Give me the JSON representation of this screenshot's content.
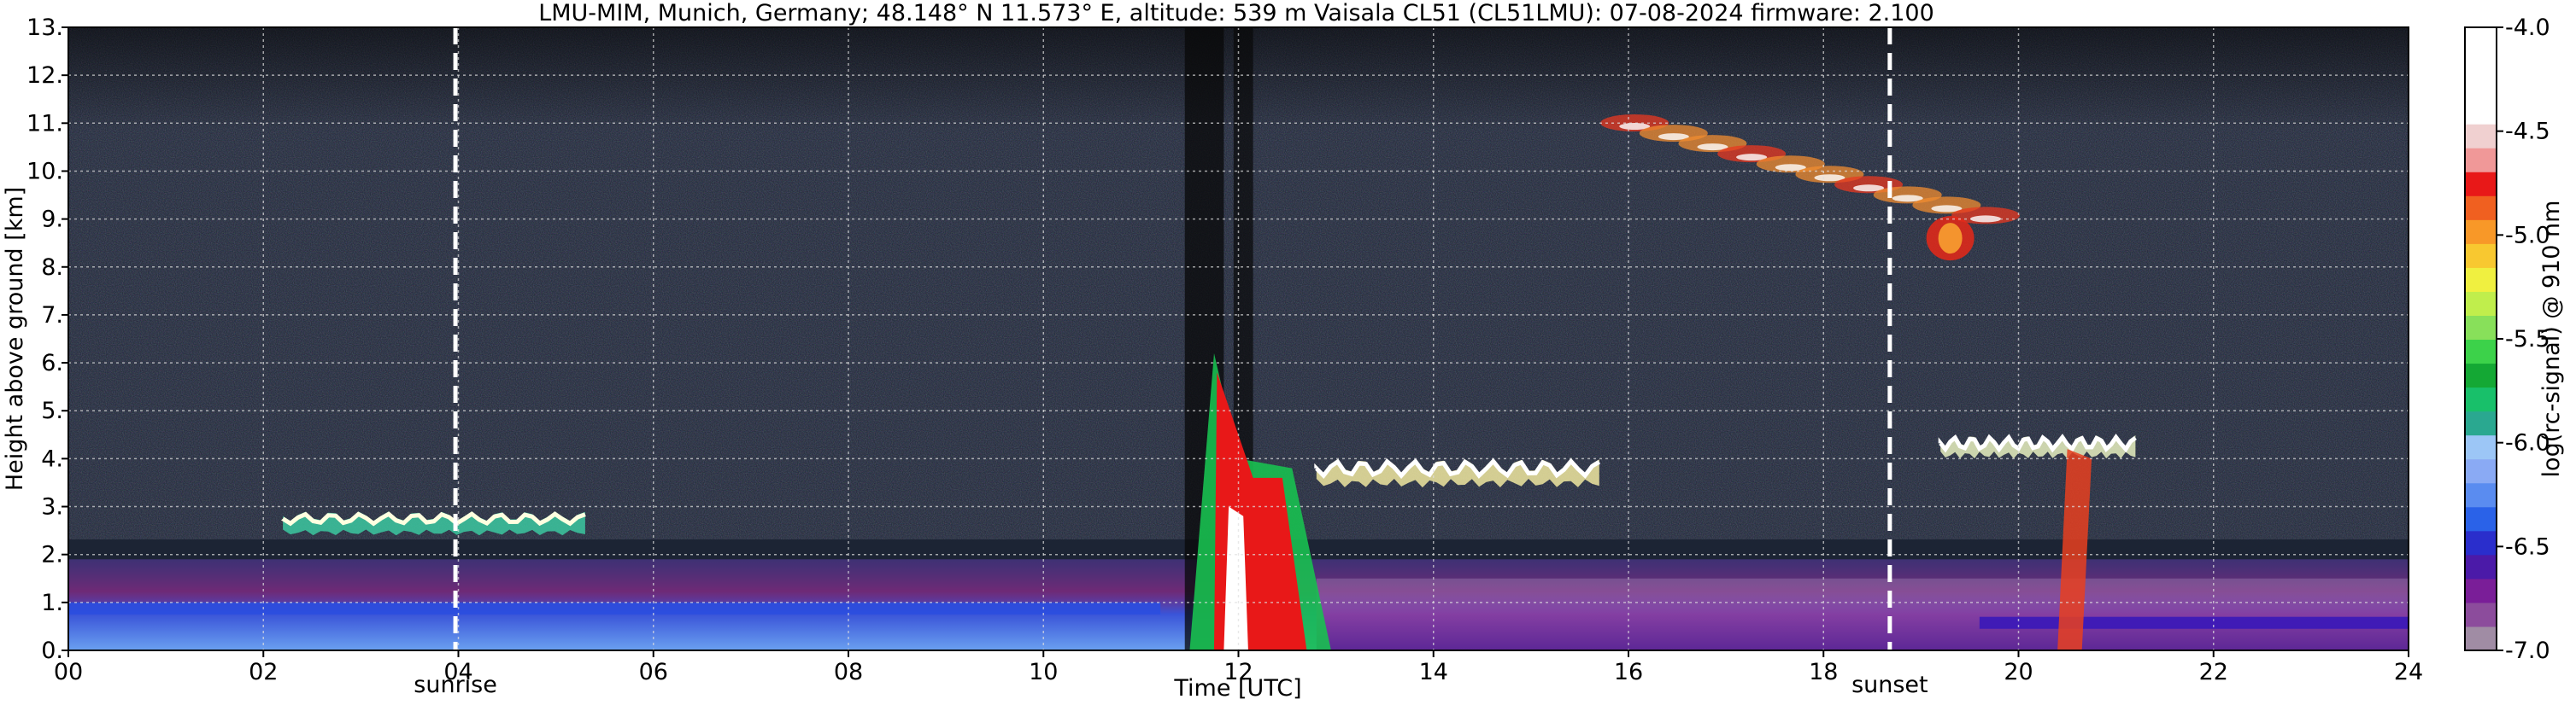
{
  "chart_data": {
    "type": "heatmap",
    "title": "LMU-MIM, Munich, Germany; 48.148° N 11.573° E, altitude: 539 m    Vaisala CL51 (CL51LMU): 07-08-2024    firmware: 2.100",
    "xlabel": "Time [UTC]",
    "ylabel": "Height above ground [km]",
    "xlim": [
      0,
      24
    ],
    "ylim": [
      0,
      13
    ],
    "x_ticks": [
      "00",
      "02",
      "04",
      "06",
      "08",
      "10",
      "12",
      "14",
      "16",
      "18",
      "20",
      "22",
      "24"
    ],
    "y_ticks": [
      "0.",
      "1.",
      "2.",
      "3.",
      "4.",
      "5.",
      "6.",
      "7.",
      "8.",
      "9.",
      "10.",
      "11.",
      "12.",
      "13."
    ],
    "grid": true,
    "colorbar": {
      "label": "log(rc-signal) @ 910 nm",
      "range": [
        -7.0,
        -4.0
      ],
      "ticks": [
        "-4.0",
        "-4.5",
        "-5.0",
        "-5.5",
        "-6.0",
        "-6.5",
        "-7.0"
      ],
      "colors": [
        "#a08ca4",
        "#8c4c9c",
        "#7a1e98",
        "#4b1aa8",
        "#2a2ecc",
        "#2a62e8",
        "#5a8cf0",
        "#8aaaf4",
        "#9cc6f6",
        "#2aa890",
        "#18c06a",
        "#14a834",
        "#3cd24a",
        "#88e05a",
        "#c0ee4c",
        "#f0f040",
        "#f8c830",
        "#f89828",
        "#f06020",
        "#e81818",
        "#f09898",
        "#f0d0d0",
        "#ffffff"
      ]
    },
    "markers": [
      {
        "x": 3.97,
        "label": "sunrise"
      },
      {
        "x": 18.68,
        "label": "sunset"
      }
    ],
    "features": [
      {
        "name": "boundary layer aerosol",
        "x": [
          0,
          24
        ],
        "height_km": [
          0,
          1.9
        ]
      },
      {
        "name": "morning cloud layer",
        "x": [
          2.2,
          5.3
        ],
        "height_km": [
          2.4,
          2.9
        ]
      },
      {
        "name": "precipitation shaft",
        "x": [
          11.5,
          13.0
        ],
        "height_km": [
          0,
          6.2
        ]
      },
      {
        "name": "afternoon cumulus tops",
        "x": [
          12.8,
          15.7
        ],
        "height_km": [
          3.4,
          4.0
        ]
      },
      {
        "name": "cirrus",
        "x": [
          15.8,
          19.8
        ],
        "height_km": [
          8.2,
          11.5
        ]
      },
      {
        "name": "evening cloud deck",
        "x": [
          19.2,
          21.2
        ],
        "height_km": [
          4.0,
          4.5
        ]
      }
    ]
  }
}
